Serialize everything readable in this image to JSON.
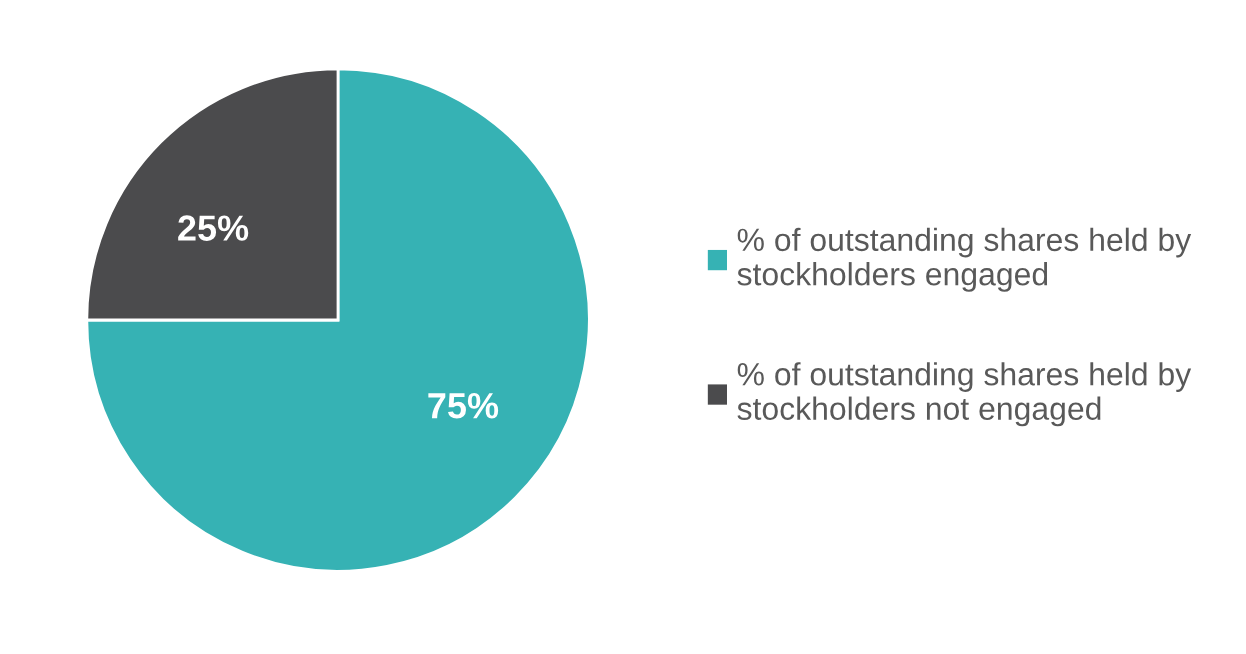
{
  "chart_data": {
    "type": "pie",
    "categories": [
      "% of outstanding shares held by\nstockholders engaged",
      "% of outstanding shares held by\nstockholders not engaged"
    ],
    "values": [
      75,
      25
    ],
    "colors": [
      "#36b2b4",
      "#4b4b4d"
    ],
    "value_labels": [
      "75%",
      "25%"
    ],
    "legend": "right"
  }
}
